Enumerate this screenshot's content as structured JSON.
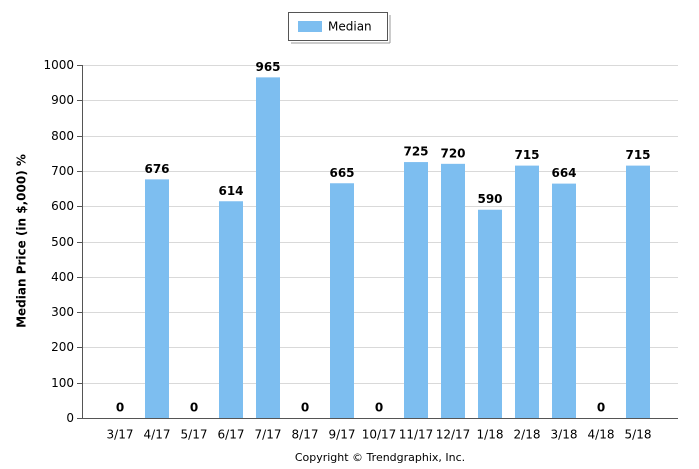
{
  "chart_data": {
    "type": "bar",
    "y_label": "Median Price (in $,000) %",
    "footer": "Copyright © Trendgraphix, Inc.",
    "categories": [
      "3/17",
      "4/17",
      "5/17",
      "6/17",
      "7/17",
      "8/17",
      "9/17",
      "10/17",
      "11/17",
      "12/17",
      "1/18",
      "2/18",
      "3/18",
      "4/18",
      "5/18"
    ],
    "series": [
      {
        "name": "Median",
        "color": "#7dbef0",
        "values": [
          0,
          676,
          0,
          614,
          965,
          0,
          665,
          0,
          725,
          720,
          590,
          715,
          664,
          0,
          715
        ]
      }
    ],
    "ylim": [
      0,
      1000
    ],
    "yticks": [
      0,
      100,
      200,
      300,
      400,
      500,
      600,
      700,
      800,
      900,
      1000
    ],
    "grid": true,
    "legend": "top"
  }
}
